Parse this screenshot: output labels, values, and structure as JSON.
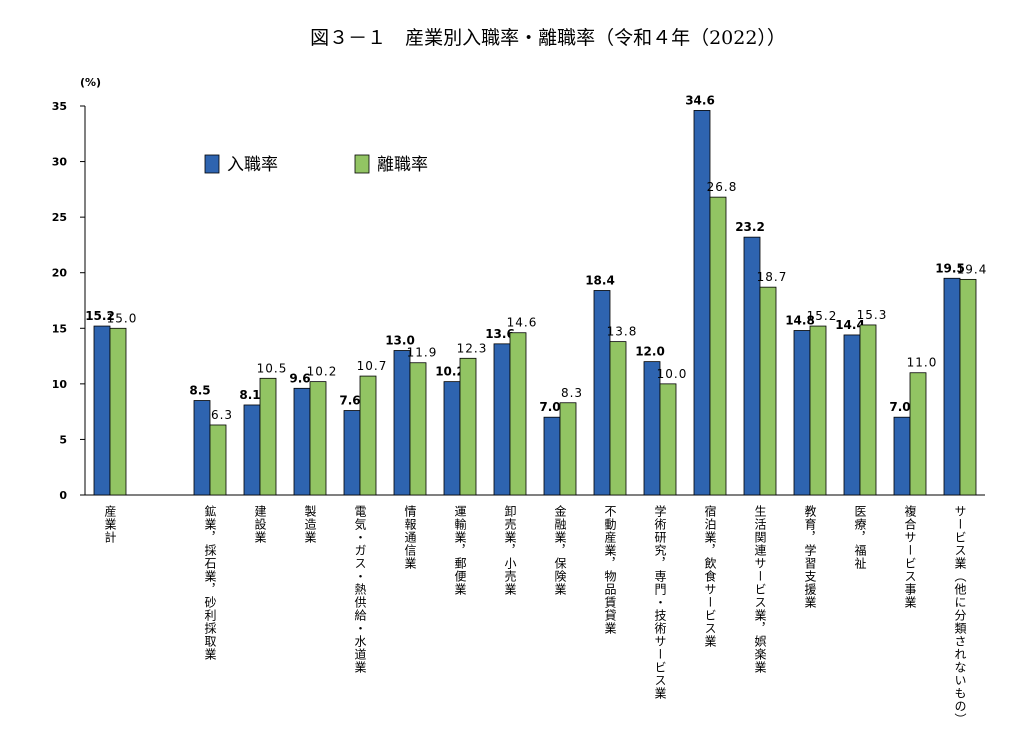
{
  "chart_data": {
    "type": "bar",
    "title": "図３－１　産業別入職率・離職率（令和４年（2022））",
    "y_label": "(%)",
    "categories": [
      "産業計",
      null,
      "鉱業，採石業，砂利採取業",
      "建設業",
      "製造業",
      "電気・ガス・熱供給・水道業",
      "情報通信業",
      "運輸業，郵便業",
      "卸売業，小売業",
      "金融業，保険業",
      "不動産業，物品賃貸業",
      "学術研究，専門・技術サービス業",
      "宿泊業，飲食サービス業",
      "生活関連サービス業，娯楽業",
      "教育，学習支援業",
      "医療，福祉",
      "複合サービス事業",
      "サービス業（他に分類されないもの）"
    ],
    "series": [
      {
        "name": "入職率",
        "color": "#2e64b0",
        "values": [
          15.2,
          null,
          8.5,
          8.1,
          9.6,
          7.6,
          13.0,
          10.2,
          13.6,
          7.0,
          18.4,
          12.0,
          34.6,
          23.2,
          14.8,
          14.4,
          7.0,
          19.5
        ],
        "value_labels": [
          "15.2",
          null,
          "8.5",
          "8.1",
          "9.6",
          "7.6",
          "13.0",
          "10.2",
          "13.6",
          "7.0",
          "18.4",
          "12.0",
          "34.6",
          "23.2",
          "14.8",
          "14.4",
          "7.0",
          "19.5"
        ]
      },
      {
        "name": "離職率",
        "color": "#92c463",
        "values": [
          15.0,
          null,
          6.3,
          10.5,
          10.2,
          10.7,
          11.9,
          12.3,
          14.6,
          8.3,
          13.8,
          10.0,
          26.8,
          18.7,
          15.2,
          15.3,
          11.0,
          19.4
        ],
        "value_labels": [
          "15.0",
          null,
          "6.3",
          "10.5",
          "10.2",
          "10.7",
          "11.9",
          "12.3",
          "14.6",
          "8.3",
          "13.8",
          "10.0",
          "26.8",
          "18.7",
          "15.2",
          "15.3",
          "11.0",
          "19.4"
        ]
      }
    ],
    "ylim": [
      0,
      35
    ],
    "yticks": [
      0,
      5,
      10,
      15,
      20,
      25,
      30,
      35
    ],
    "legend": "upper-left"
  }
}
